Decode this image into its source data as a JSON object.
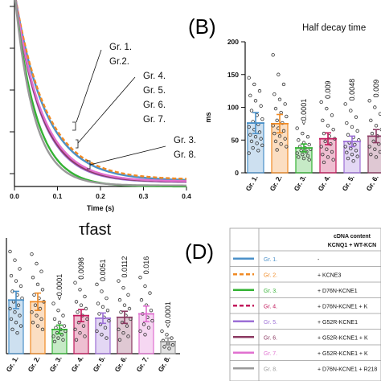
{
  "chart_data": [
    {
      "id": "A",
      "type": "line",
      "xlabel": "Time (s)",
      "xticks": [
        "0.0",
        "0.1",
        "0.2",
        "0.3",
        "0.4"
      ],
      "xlim": [
        0,
        0.4
      ],
      "annotations": [
        "Gr. 1.",
        "Gr.2.",
        "Gr. 4.",
        "Gr. 5.",
        "Gr. 6.",
        "Gr. 7.",
        "Gr. 3.",
        "Gr. 8."
      ],
      "series": [
        {
          "group": "Gr. 1.",
          "color": "#4a90c8",
          "dashed": false,
          "tau": 0.072,
          "offset": 0.03
        },
        {
          "group": "Gr. 2.",
          "color": "#f08a24",
          "dashed": true,
          "tau": 0.074,
          "offset": 0.035
        },
        {
          "group": "Gr. 4.",
          "color": "#c2185b",
          "dashed": true,
          "tau": 0.062,
          "offset": 0.025
        },
        {
          "group": "Gr. 5.",
          "color": "#9c6fd6",
          "dashed": false,
          "tau": 0.06,
          "offset": 0.022
        },
        {
          "group": "Gr. 6.",
          "color": "#8b3a62",
          "dashed": false,
          "tau": 0.061,
          "offset": 0.024
        },
        {
          "group": "Gr. 7.",
          "color": "#e070d0",
          "dashed": false,
          "tau": 0.063,
          "offset": 0.026
        },
        {
          "group": "Gr. 3.",
          "color": "#33b233",
          "dashed": false,
          "tau": 0.05,
          "offset": 0.0
        },
        {
          "group": "Gr. 8.",
          "color": "#999999",
          "dashed": false,
          "tau": 0.045,
          "offset": 0.005
        }
      ]
    },
    {
      "id": "B",
      "type": "bar",
      "panel_label": "(B)",
      "title": "Half decay time",
      "ylabel": "ms",
      "ylim": [
        0,
        200
      ],
      "yticks": [
        "0",
        "50",
        "100",
        "150",
        "200"
      ],
      "categories": [
        "Gr. 1.",
        "Gr. 2.",
        "Gr. 3.",
        "Gr. 4.",
        "Gr. 5.",
        "Gr. 6."
      ],
      "values": [
        76,
        75,
        38,
        52,
        48,
        56
      ],
      "errors": [
        16,
        14,
        6,
        9,
        8,
        10
      ],
      "colors": [
        "#4a90c8",
        "#f08a24",
        "#33b233",
        "#c2185b",
        "#9c6fd6",
        "#8b3a62"
      ],
      "pvalues": [
        "",
        "",
        "<0.0001",
        "0.009",
        "0.0048",
        "0.009"
      ],
      "points": [
        [
          145,
          135,
          125,
          118,
          110,
          102,
          95,
          88,
          82,
          78,
          74,
          70,
          66,
          62,
          58,
          55,
          52,
          48,
          45,
          42,
          38,
          34,
          30
        ],
        [
          180,
          150,
          135,
          120,
          112,
          105,
          98,
          92,
          86,
          80,
          76,
          72,
          68,
          64,
          60,
          56,
          52,
          48,
          44,
          40,
          35
        ],
        [
          68,
          60,
          55,
          50,
          46,
          43,
          40,
          38,
          36,
          34,
          32,
          30,
          28,
          26,
          24,
          22,
          20
        ],
        [
          108,
          98,
          88,
          80,
          72,
          66,
          60,
          56,
          52,
          48,
          44,
          40,
          36,
          32,
          28,
          24,
          20,
          16
        ],
        [
          105,
          95,
          85,
          76,
          70,
          64,
          58,
          54,
          50,
          46,
          43,
          40,
          37,
          34,
          31,
          28,
          25,
          22,
          18
        ],
        [
          110,
          100,
          90,
          80,
          72,
          66,
          60,
          56,
          52,
          48,
          44,
          40,
          36,
          32,
          28,
          24
        ]
      ]
    },
    {
      "id": "C",
      "type": "bar",
      "title": "τfast",
      "categories": [
        "Gr. 1.",
        "Gr. 2.",
        "Gr. 3.",
        "Gr. 4.",
        "Gr. 5.",
        "Gr. 6.",
        "Gr. 7.",
        "Gr. 8."
      ],
      "values": [
        62,
        60,
        28,
        44,
        41,
        42,
        46,
        14
      ],
      "errors": [
        10,
        10,
        5,
        7,
        6,
        7,
        9,
        4
      ],
      "ylim": [
        0,
        130
      ],
      "colors": [
        "#4a90c8",
        "#f08a24",
        "#33b233",
        "#c2185b",
        "#9c6fd6",
        "#8b3a62",
        "#e070d0",
        "#999999"
      ],
      "pvalues": [
        "",
        "",
        "<0.0001",
        "0.0098",
        "0.0051",
        "0.0112",
        "0.016",
        "<0.0001"
      ],
      "points": [
        [
          118,
          108,
          98,
          90,
          84,
          78,
          72,
          68,
          64,
          60,
          56,
          52,
          48,
          44,
          40,
          36,
          32,
          28,
          24
        ],
        [
          115,
          104,
          95,
          88,
          80,
          74,
          68,
          64,
          60,
          56,
          52,
          48,
          44,
          40,
          36,
          32,
          28
        ],
        [
          58,
          50,
          44,
          40,
          36,
          32,
          30,
          28,
          26,
          24,
          22,
          20,
          18,
          16,
          14
        ],
        [
          82,
          74,
          66,
          60,
          56,
          52,
          48,
          44,
          40,
          36,
          32,
          28,
          24,
          20,
          16
        ],
        [
          80,
          72,
          64,
          58,
          54,
          50,
          46,
          42,
          38,
          34,
          30,
          26,
          22,
          18
        ],
        [
          84,
          76,
          68,
          62,
          56,
          52,
          48,
          44,
          40,
          36,
          32,
          28,
          24,
          20,
          16
        ],
        [
          88,
          78,
          70,
          62,
          56,
          50,
          46,
          42,
          38,
          34,
          30,
          26,
          22
        ],
        [
          26,
          22,
          18,
          15,
          12,
          10,
          8,
          6
        ]
      ]
    },
    {
      "id": "D",
      "type": "table",
      "panel_label": "(D)",
      "header_line1": "cDNA content",
      "header_line2": "KCNQ1 + WT-KCN",
      "rows": [
        {
          "group": "Gr. 1.",
          "color": "#4a90c8",
          "dashed": false,
          "content": "-"
        },
        {
          "group": "Gr. 2.",
          "color": "#f08a24",
          "dashed": true,
          "content": "+ KCNE3"
        },
        {
          "group": "Gr. 3.",
          "color": "#33b233",
          "dashed": false,
          "content": "+ D76N-KCNE1"
        },
        {
          "group": "Gr. 4.",
          "color": "#c2185b",
          "dashed": true,
          "content": "+ D76N-KCNE1 + K"
        },
        {
          "group": "Gr. 5.",
          "color": "#9c6fd6",
          "dashed": false,
          "content": "+ G52R-KCNE1"
        },
        {
          "group": "Gr. 6.",
          "color": "#8b3a62",
          "dashed": false,
          "content": "+ G52R-KCNE1 + K"
        },
        {
          "group": "Gr. 7.",
          "color": "#e070d0",
          "dashed": false,
          "content": "+ G52R-KCNE1 + K"
        },
        {
          "group": "Gr. 8.",
          "color": "#999999",
          "dashed": false,
          "content": "+ D76N-KCNE1 + R218"
        }
      ]
    }
  ]
}
